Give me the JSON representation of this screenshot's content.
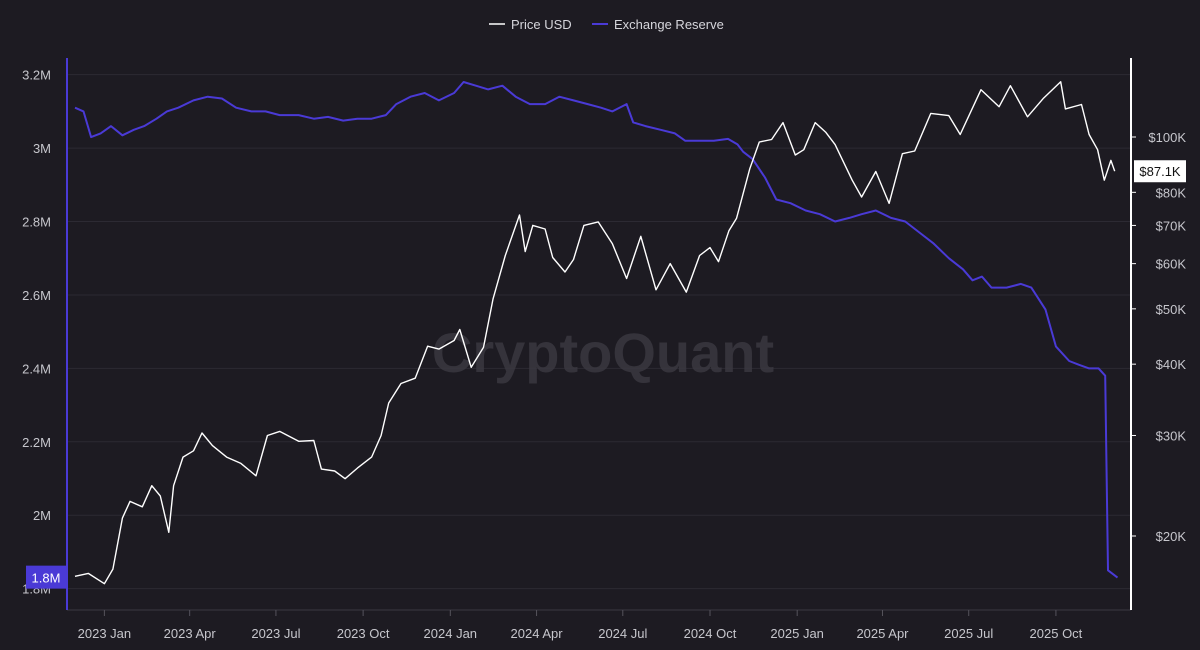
{
  "watermark": "CryptoQuant",
  "colors": {
    "background": "#1d1b22",
    "price": "#ffffff",
    "reserve": "#4a3ad6",
    "grid": "#2c2a33",
    "axis_text": "#c6c6cc"
  },
  "chart_data": {
    "type": "line",
    "title": "",
    "legend": {
      "position": "top-center",
      "items": [
        {
          "name": "Price USD",
          "color": "#ffffff"
        },
        {
          "name": "Exchange Reserve",
          "color": "#4a3ad6"
        }
      ]
    },
    "grid": true,
    "x_ticks": [
      "2023 Jan",
      "2023 Apr",
      "2023 Jul",
      "2023 Oct",
      "2024 Jan",
      "2024 Apr",
      "2024 Jul",
      "2024 Oct",
      "2025 Jan",
      "2025 Apr",
      "2025 Jul",
      "2025 Oct"
    ],
    "x_tick_dates": [
      "2023-01-01",
      "2023-04-01",
      "2023-07-01",
      "2023-10-01",
      "2024-01-01",
      "2024-04-01",
      "2024-07-01",
      "2024-10-01",
      "2025-01-01",
      "2025-04-01",
      "2025-07-01",
      "2025-10-01"
    ],
    "x_range": [
      "2022-12-01",
      "2025-12-15"
    ],
    "y_left": {
      "label": "",
      "ticks": [
        "3.2M",
        "3M",
        "2.8M",
        "2.6M",
        "2.4M",
        "2.2M",
        "2M",
        "1.8M"
      ],
      "tick_values": [
        3200000,
        3000000,
        2800000,
        2600000,
        2400000,
        2200000,
        2000000,
        1800000
      ],
      "range": [
        1780000,
        3240000
      ],
      "current_label": "1.8M"
    },
    "y_right": {
      "label": "",
      "scale": "log",
      "ticks": [
        "$100K",
        "$80K",
        "$70K",
        "$60K",
        "$50K",
        "$40K",
        "$30K",
        "$20K"
      ],
      "tick_values": [
        100000,
        80000,
        70000,
        60000,
        50000,
        40000,
        30000,
        20000
      ],
      "current_label": "$87.1K"
    },
    "series": [
      {
        "name": "Exchange Reserve",
        "axis": "left",
        "points": [
          [
            "2022-12-01",
            3110000
          ],
          [
            "2022-12-10",
            3100000
          ],
          [
            "2022-12-18",
            3030000
          ],
          [
            "2022-12-28",
            3040000
          ],
          [
            "2023-01-08",
            3060000
          ],
          [
            "2023-01-20",
            3035000
          ],
          [
            "2023-02-01",
            3050000
          ],
          [
            "2023-02-12",
            3060000
          ],
          [
            "2023-02-25",
            3080000
          ],
          [
            "2023-03-08",
            3100000
          ],
          [
            "2023-03-20",
            3110000
          ],
          [
            "2023-04-05",
            3130000
          ],
          [
            "2023-04-20",
            3140000
          ],
          [
            "2023-05-05",
            3135000
          ],
          [
            "2023-05-20",
            3110000
          ],
          [
            "2023-06-05",
            3100000
          ],
          [
            "2023-06-20",
            3100000
          ],
          [
            "2023-07-05",
            3090000
          ],
          [
            "2023-07-25",
            3090000
          ],
          [
            "2023-08-10",
            3080000
          ],
          [
            "2023-08-25",
            3085000
          ],
          [
            "2023-09-10",
            3075000
          ],
          [
            "2023-09-25",
            3080000
          ],
          [
            "2023-10-10",
            3080000
          ],
          [
            "2023-10-25",
            3090000
          ],
          [
            "2023-11-05",
            3120000
          ],
          [
            "2023-11-20",
            3140000
          ],
          [
            "2023-12-05",
            3150000
          ],
          [
            "2023-12-20",
            3130000
          ],
          [
            "2024-01-05",
            3150000
          ],
          [
            "2024-01-15",
            3180000
          ],
          [
            "2024-01-28",
            3170000
          ],
          [
            "2024-02-10",
            3160000
          ],
          [
            "2024-02-25",
            3170000
          ],
          [
            "2024-03-10",
            3140000
          ],
          [
            "2024-03-25",
            3120000
          ],
          [
            "2024-04-10",
            3120000
          ],
          [
            "2024-04-25",
            3140000
          ],
          [
            "2024-05-10",
            3130000
          ],
          [
            "2024-05-25",
            3120000
          ],
          [
            "2024-06-08",
            3110000
          ],
          [
            "2024-06-20",
            3100000
          ],
          [
            "2024-07-05",
            3120000
          ],
          [
            "2024-07-12",
            3070000
          ],
          [
            "2024-07-25",
            3060000
          ],
          [
            "2024-08-10",
            3050000
          ],
          [
            "2024-08-25",
            3040000
          ],
          [
            "2024-09-05",
            3020000
          ],
          [
            "2024-09-20",
            3020000
          ],
          [
            "2024-10-05",
            3020000
          ],
          [
            "2024-10-20",
            3025000
          ],
          [
            "2024-10-30",
            3010000
          ],
          [
            "2024-11-05",
            2990000
          ],
          [
            "2024-11-15",
            2970000
          ],
          [
            "2024-11-28",
            2920000
          ],
          [
            "2024-12-10",
            2860000
          ],
          [
            "2024-12-25",
            2850000
          ],
          [
            "2025-01-10",
            2830000
          ],
          [
            "2025-01-25",
            2820000
          ],
          [
            "2025-02-10",
            2800000
          ],
          [
            "2025-02-25",
            2810000
          ],
          [
            "2025-03-10",
            2820000
          ],
          [
            "2025-03-25",
            2830000
          ],
          [
            "2025-04-10",
            2810000
          ],
          [
            "2025-04-25",
            2800000
          ],
          [
            "2025-05-10",
            2770000
          ],
          [
            "2025-05-25",
            2740000
          ],
          [
            "2025-06-10",
            2700000
          ],
          [
            "2025-06-25",
            2670000
          ],
          [
            "2025-07-05",
            2640000
          ],
          [
            "2025-07-15",
            2650000
          ],
          [
            "2025-07-25",
            2620000
          ],
          [
            "2025-08-10",
            2620000
          ],
          [
            "2025-08-25",
            2630000
          ],
          [
            "2025-09-05",
            2620000
          ],
          [
            "2025-09-20",
            2560000
          ],
          [
            "2025-10-01",
            2460000
          ],
          [
            "2025-10-15",
            2420000
          ],
          [
            "2025-10-25",
            2410000
          ],
          [
            "2025-11-05",
            2400000
          ],
          [
            "2025-11-15",
            2400000
          ],
          [
            "2025-11-22",
            2380000
          ],
          [
            "2025-11-25",
            1850000
          ],
          [
            "2025-12-05",
            1830000
          ]
        ]
      },
      {
        "name": "Price USD",
        "axis": "right",
        "points": [
          [
            "2022-12-01",
            17000
          ],
          [
            "2022-12-15",
            17200
          ],
          [
            "2023-01-01",
            16500
          ],
          [
            "2023-01-10",
            17500
          ],
          [
            "2023-01-20",
            21500
          ],
          [
            "2023-01-28",
            23000
          ],
          [
            "2023-02-10",
            22500
          ],
          [
            "2023-02-20",
            24500
          ],
          [
            "2023-03-01",
            23500
          ],
          [
            "2023-03-10",
            20300
          ],
          [
            "2023-03-15",
            24500
          ],
          [
            "2023-03-25",
            27500
          ],
          [
            "2023-04-05",
            28200
          ],
          [
            "2023-04-14",
            30300
          ],
          [
            "2023-04-25",
            28800
          ],
          [
            "2023-05-10",
            27500
          ],
          [
            "2023-05-25",
            26800
          ],
          [
            "2023-06-10",
            25500
          ],
          [
            "2023-06-22",
            30000
          ],
          [
            "2023-07-05",
            30500
          ],
          [
            "2023-07-25",
            29300
          ],
          [
            "2023-08-10",
            29400
          ],
          [
            "2023-08-18",
            26200
          ],
          [
            "2023-09-01",
            26000
          ],
          [
            "2023-09-12",
            25200
          ],
          [
            "2023-09-25",
            26300
          ],
          [
            "2023-10-10",
            27500
          ],
          [
            "2023-10-20",
            30000
          ],
          [
            "2023-10-28",
            34200
          ],
          [
            "2023-11-10",
            37000
          ],
          [
            "2023-11-25",
            37800
          ],
          [
            "2023-12-08",
            43000
          ],
          [
            "2023-12-20",
            42500
          ],
          [
            "2024-01-05",
            44000
          ],
          [
            "2024-01-11",
            46000
          ],
          [
            "2024-01-23",
            39500
          ],
          [
            "2024-02-05",
            42800
          ],
          [
            "2024-02-15",
            52000
          ],
          [
            "2024-02-28",
            62000
          ],
          [
            "2024-03-14",
            73000
          ],
          [
            "2024-03-20",
            63000
          ],
          [
            "2024-03-28",
            70000
          ],
          [
            "2024-04-10",
            69000
          ],
          [
            "2024-04-18",
            61500
          ],
          [
            "2024-05-01",
            58000
          ],
          [
            "2024-05-10",
            61000
          ],
          [
            "2024-05-21",
            70000
          ],
          [
            "2024-06-05",
            71000
          ],
          [
            "2024-06-20",
            65000
          ],
          [
            "2024-07-05",
            56500
          ],
          [
            "2024-07-20",
            67000
          ],
          [
            "2024-08-05",
            54000
          ],
          [
            "2024-08-20",
            60000
          ],
          [
            "2024-09-06",
            53500
          ],
          [
            "2024-09-20",
            62000
          ],
          [
            "2024-10-01",
            64000
          ],
          [
            "2024-10-10",
            60500
          ],
          [
            "2024-10-21",
            68500
          ],
          [
            "2024-10-29",
            72000
          ],
          [
            "2024-11-12",
            88000
          ],
          [
            "2024-11-22",
            98000
          ],
          [
            "2024-12-05",
            99000
          ],
          [
            "2024-12-17",
            106000
          ],
          [
            "2024-12-30",
            93000
          ],
          [
            "2025-01-08",
            95000
          ],
          [
            "2025-01-20",
            106000
          ],
          [
            "2025-01-31",
            102000
          ],
          [
            "2025-02-10",
            97000
          ],
          [
            "2025-02-28",
            84000
          ],
          [
            "2025-03-10",
            78500
          ],
          [
            "2025-03-25",
            87000
          ],
          [
            "2025-04-08",
            76500
          ],
          [
            "2025-04-22",
            93500
          ],
          [
            "2025-05-05",
            94500
          ],
          [
            "2025-05-22",
            110000
          ],
          [
            "2025-06-10",
            109000
          ],
          [
            "2025-06-22",
            101000
          ],
          [
            "2025-07-14",
            121000
          ],
          [
            "2025-08-02",
            113000
          ],
          [
            "2025-08-14",
            123000
          ],
          [
            "2025-09-01",
            108500
          ],
          [
            "2025-09-18",
            117000
          ],
          [
            "2025-10-06",
            125000
          ],
          [
            "2025-10-11",
            112000
          ],
          [
            "2025-10-28",
            114000
          ],
          [
            "2025-11-05",
            101000
          ],
          [
            "2025-11-14",
            95000
          ],
          [
            "2025-11-21",
            84000
          ],
          [
            "2025-11-28",
            91000
          ],
          [
            "2025-12-02",
            87100
          ]
        ]
      }
    ]
  }
}
